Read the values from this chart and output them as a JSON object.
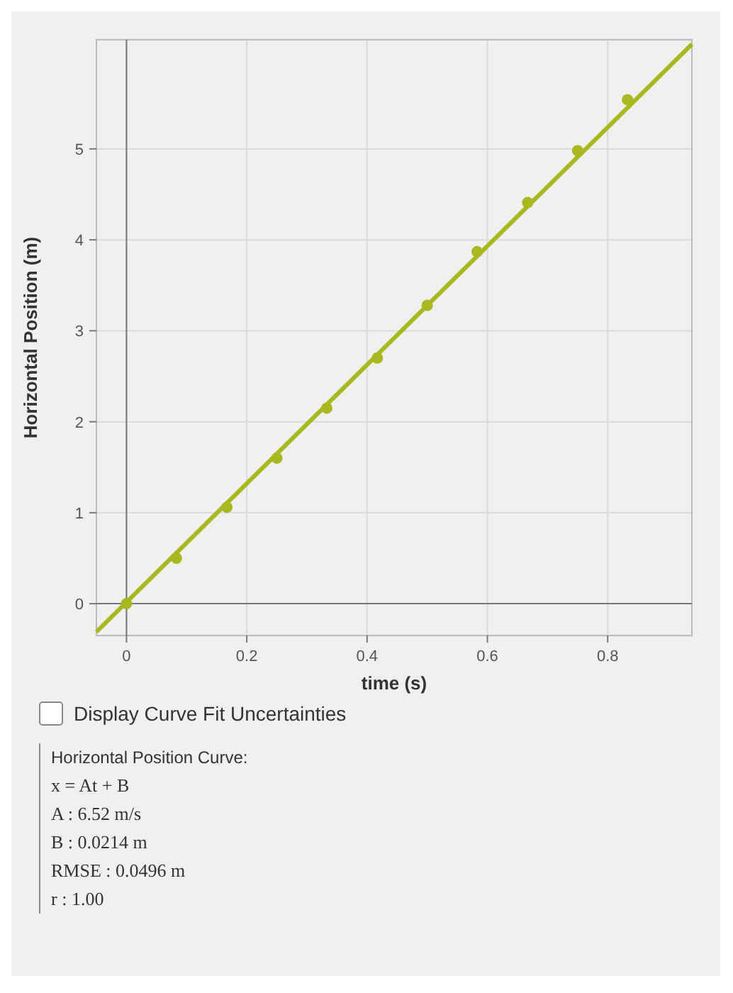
{
  "chart_data": {
    "type": "scatter",
    "xlabel": "time (s)",
    "ylabel": "Horizontal Position (m)",
    "xlim": [
      -0.05,
      0.94
    ],
    "ylim": [
      -0.35,
      6.2
    ],
    "xticks": [
      0,
      0.2,
      0.4,
      0.6,
      0.8
    ],
    "yticks": [
      0,
      1,
      2,
      3,
      4,
      5
    ],
    "grid": true,
    "series": [
      {
        "type": "line",
        "color": "#a9b81e",
        "x": [
          -0.05,
          0.94
        ],
        "values": [
          -0.31,
          6.15
        ],
        "marker": "none"
      },
      {
        "color": "#a9b81e",
        "x": [
          0,
          0.083,
          0.167,
          0.25,
          0.333,
          0.417,
          0.5,
          0.583,
          0.667,
          0.75,
          0.833
        ],
        "values": [
          0,
          0.5,
          1.06,
          1.6,
          2.15,
          2.7,
          3.28,
          3.87,
          4.41,
          4.98,
          5.54
        ],
        "marker": "circle"
      }
    ],
    "annotations": [
      "Display Curve Fit Uncertainties",
      "Horizontal Position Curve:",
      "x = At + B",
      "A : 6.52 m/s",
      "B : 0.0214 m",
      "RMSE : 0.0496 m",
      "r : 1.00"
    ]
  }
}
